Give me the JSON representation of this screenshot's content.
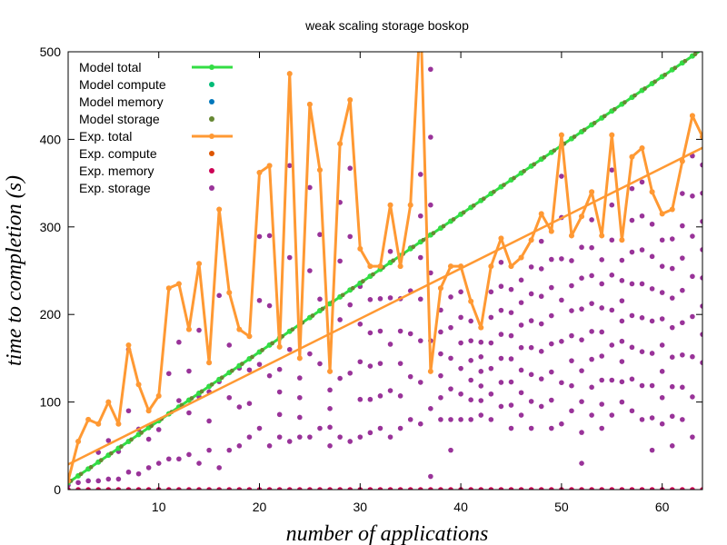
{
  "chart_data": {
    "type": "scatter",
    "title": "weak scaling storage boskop",
    "xlabel": "number of applications",
    "ylabel": "time to completion (s)",
    "xlim": [
      1,
      64
    ],
    "ylim": [
      0,
      500
    ],
    "xticks": [
      10,
      20,
      30,
      40,
      50,
      60
    ],
    "yticks": [
      0,
      100,
      200,
      300,
      400,
      500
    ],
    "grid": false,
    "legend_position": "top-left",
    "legend": [
      {
        "label": "Model total",
        "kind": "linepoint",
        "color": "#33dd44"
      },
      {
        "label": "Model compute",
        "kind": "point",
        "color": "#00bb77"
      },
      {
        "label": "Model memory",
        "kind": "point",
        "color": "#0077bb"
      },
      {
        "label": "Model storage",
        "kind": "point",
        "color": "#668833"
      },
      {
        "label": "Exp.  total",
        "kind": "linepoint",
        "color": "#ff9933"
      },
      {
        "label": "Exp.  compute",
        "kind": "point",
        "color": "#dd5500"
      },
      {
        "label": "Exp.  memory",
        "kind": "point",
        "color": "#cc0055"
      },
      {
        "label": "Exp.  storage",
        "kind": "point",
        "color": "#993399"
      }
    ],
    "series": {
      "model_total": {
        "slope": 7.86,
        "intercept": 0
      },
      "exp_total": {
        "x": [
          1,
          2,
          3,
          4,
          5,
          6,
          7,
          8,
          9,
          10,
          11,
          12,
          13,
          14,
          15,
          16,
          17,
          18,
          19,
          20,
          21,
          22,
          23,
          24,
          25,
          26,
          27,
          28,
          29,
          30,
          31,
          32,
          33,
          34,
          35,
          36,
          37,
          38,
          39,
          40,
          41,
          42,
          43,
          44,
          45,
          46,
          47,
          48,
          49,
          50,
          51,
          52,
          53,
          54,
          55,
          56,
          57,
          58,
          59,
          60,
          61,
          62,
          63,
          64
        ],
        "values": [
          10,
          55,
          80,
          75,
          100,
          75,
          165,
          120,
          90,
          107,
          230,
          235,
          183,
          258,
          145,
          320,
          225,
          183,
          175,
          362,
          370,
          163,
          475,
          150,
          440,
          365,
          135,
          395,
          445,
          275,
          255,
          255,
          325,
          255,
          325,
          545,
          135,
          230,
          255,
          255,
          215,
          185,
          255,
          287,
          255,
          265,
          285,
          315,
          295,
          405,
          290,
          312,
          340,
          290,
          405,
          285,
          380,
          390,
          340,
          315,
          320,
          375,
          427,
          403
        ]
      },
      "exp_total_fit": {
        "slope": 5.74,
        "intercept": 23
      },
      "exp_storage_top": {
        "x": [
          1,
          2,
          3,
          4,
          5,
          6,
          7,
          8,
          9,
          10,
          11,
          12,
          13,
          14,
          15,
          16,
          17,
          18,
          19,
          20,
          21,
          22,
          23,
          24,
          25,
          26,
          27,
          28,
          29,
          30,
          31,
          32,
          33,
          34,
          35,
          36,
          37,
          38,
          39,
          40,
          41,
          42,
          43,
          44,
          45,
          46,
          47,
          48,
          49,
          50,
          51,
          52,
          53,
          54,
          55,
          56,
          57,
          58,
          59,
          60,
          61,
          62,
          63,
          64
        ],
        "values": [
          10,
          55,
          80,
          75,
          100,
          75,
          160,
          120,
          90,
          107,
          230,
          235,
          183,
          258,
          145,
          320,
          225,
          183,
          175,
          362,
          370,
          163,
          475,
          150,
          440,
          365,
          135,
          395,
          445,
          275,
          255,
          255,
          325,
          255,
          325,
          360,
          480,
          230,
          255,
          255,
          215,
          185,
          255,
          287,
          255,
          265,
          285,
          315,
          295,
          405,
          290,
          312,
          340,
          290,
          405,
          285,
          380,
          390,
          340,
          315,
          320,
          375,
          427,
          403
        ]
      },
      "exp_storage_bottom": {
        "x": [
          1,
          2,
          3,
          4,
          5,
          6,
          7,
          8,
          9,
          10,
          11,
          12,
          13,
          14,
          15,
          16,
          17,
          18,
          19,
          20,
          21,
          22,
          23,
          24,
          25,
          26,
          27,
          28,
          29,
          30,
          31,
          32,
          33,
          34,
          35,
          36,
          37,
          38,
          39,
          40,
          41,
          42,
          43,
          44,
          45,
          46,
          47,
          48,
          49,
          50,
          51,
          52,
          53,
          54,
          55,
          56,
          57,
          58,
          59,
          60,
          61,
          62,
          63,
          64
        ],
        "values": [
          5,
          8,
          10,
          10,
          12,
          12,
          20,
          18,
          25,
          30,
          35,
          35,
          40,
          30,
          45,
          25,
          45,
          50,
          60,
          70,
          50,
          60,
          55,
          60,
          60,
          70,
          50,
          60,
          55,
          60,
          65,
          70,
          60,
          70,
          80,
          75,
          15,
          80,
          45,
          80,
          80,
          85,
          80,
          95,
          70,
          85,
          70,
          95,
          70,
          75,
          90,
          30,
          85,
          70,
          85,
          100,
          90,
          80,
          45,
          75,
          50,
          80,
          60,
          145
        ]
      },
      "exp_memory": {
        "value": 0
      },
      "exp_compute": {
        "value": 0
      }
    }
  }
}
